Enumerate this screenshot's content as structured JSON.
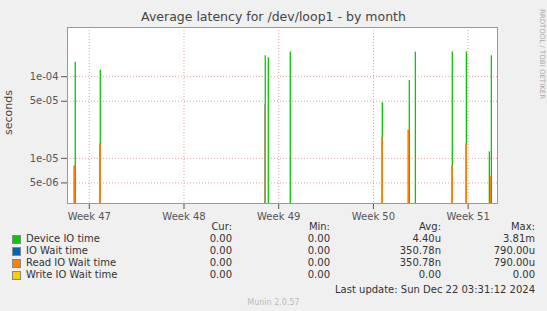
{
  "chart_data": {
    "type": "bar",
    "title": "Average latency for /dev/loop1 - by month",
    "y_label": "seconds",
    "log": "y",
    "grid": true,
    "xlim": [
      46.77,
      51.31
    ],
    "xticks": [
      {
        "value": 47,
        "label": "Week 47"
      },
      {
        "value": 48,
        "label": "Week 48"
      },
      {
        "value": 49,
        "label": "Week 49"
      },
      {
        "value": 50,
        "label": "Week 50"
      },
      {
        "value": 51,
        "label": "Week 51"
      }
    ],
    "ylim": [
      2.8e-06,
      0.0004
    ],
    "yticks": [
      {
        "value": 5e-06,
        "label": "5e-06"
      },
      {
        "value": 1e-05,
        "label": "1e-05"
      },
      {
        "value": 5e-05,
        "label": "5e-05"
      },
      {
        "value": 0.0001,
        "label": "1e-04"
      }
    ],
    "legend_columns": [
      "Cur:",
      "Min:",
      "Avg:",
      "Max:"
    ],
    "series": [
      {
        "name": "Device IO time",
        "color": "#00cc00",
        "x": [
          46.852,
          47.116,
          48.858,
          48.89,
          49.122,
          50.094,
          50.379,
          50.443,
          50.833,
          50.981,
          51.224,
          51.245
        ],
        "values": [
          0.00015,
          0.00012,
          0.00018,
          0.00017,
          0.0002,
          4.8e-05,
          9e-05,
          0.0002,
          0.0002,
          0.0002,
          1.2e-05,
          0.00018
        ],
        "stats": [
          "0.00",
          "0.00",
          "4.40u",
          "3.81m"
        ]
      },
      {
        "name": "IO Wait time",
        "color": "#0066b3",
        "x": [
          46.842,
          47.116,
          48.858,
          50.094,
          50.369,
          50.833,
          50.981,
          51.235
        ],
        "values": [
          8e-06,
          1.5e-05,
          4.5e-05,
          1.8e-05,
          2.2e-05,
          8e-06,
          1.5e-05,
          6e-06
        ],
        "stats": [
          "0.00",
          "0.00",
          "350.78n",
          "790.00u"
        ]
      },
      {
        "name": "Read IO Wait time",
        "color": "#ff8000",
        "x": [
          46.842,
          47.116,
          48.858,
          50.094,
          50.369,
          50.833,
          50.981,
          51.235
        ],
        "values": [
          8e-06,
          1.5e-05,
          4.5e-05,
          1.8e-05,
          2.2e-05,
          8e-06,
          1.5e-05,
          6e-06
        ],
        "stats": [
          "0.00",
          "0.00",
          "350.78n",
          "790.00u"
        ]
      },
      {
        "name": "Write IO Wait time",
        "color": "#ffcc00",
        "x": [],
        "values": [],
        "stats": [
          "0.00",
          "0.00",
          "0.00",
          "0.00"
        ]
      }
    ],
    "last_update": "Last update: Sun Dec 22 03:31:12 2024",
    "footer": "Munin 2.0.57",
    "watermark": "RRDTOOL / TOBI OETIKER"
  }
}
